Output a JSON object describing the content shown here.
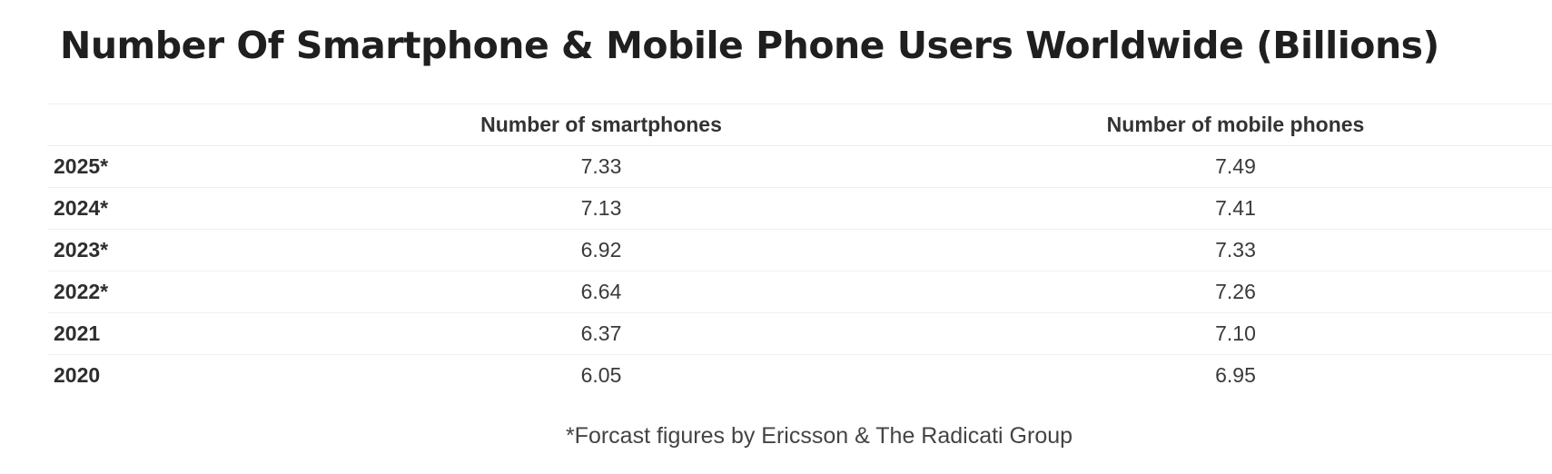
{
  "chart_data": {
    "type": "table",
    "title": "Number Of Smartphone & Mobile Phone Users Worldwide (Billions)",
    "columns": [
      "",
      "Number of smartphones",
      "Number of mobile phones"
    ],
    "rows": [
      {
        "year": "2025*",
        "smartphones": "7.33",
        "mobile_phones": "7.49"
      },
      {
        "year": "2024*",
        "smartphones": "7.13",
        "mobile_phones": "7.41"
      },
      {
        "year": "2023*",
        "smartphones": "6.92",
        "mobile_phones": "7.33"
      },
      {
        "year": "2022*",
        "smartphones": "6.64",
        "mobile_phones": "7.26"
      },
      {
        "year": "2021",
        "smartphones": "6.37",
        "mobile_phones": "7.10"
      },
      {
        "year": "2020",
        "smartphones": "6.05",
        "mobile_phones": "6.95"
      }
    ],
    "footnote": "*Forcast figures by Ericsson & The Radicati Group"
  }
}
